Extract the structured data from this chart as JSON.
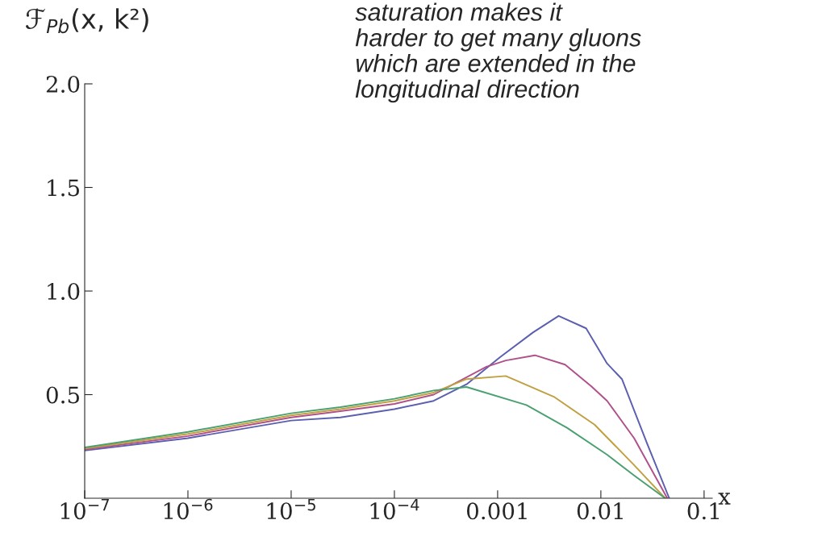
{
  "chart_data": {
    "type": "line",
    "ylabel": "ℱ$_{Pb}$(x, k²)",
    "xlabel": "x",
    "annotations": [
      "saturation makes it\nharder to get many gluons\nwhich are extended in the\nlongitudinal direction"
    ],
    "log": "x",
    "xlim": [
      1e-07,
      0.12
    ],
    "ylim": [
      0,
      2.0
    ],
    "xticks": [
      {
        "value": 1e-07,
        "label": "10$^{−7}$"
      },
      {
        "value": 1e-06,
        "label": "10$^{−6}$"
      },
      {
        "value": 1e-05,
        "label": "10$^{−5}$"
      },
      {
        "value": 0.0001,
        "label": "10$^{−4}$"
      },
      0.001,
      0.01,
      0.1
    ],
    "yticks": [
      0.5,
      {
        "value": 1,
        "label": "1.0"
      },
      1.5,
      {
        "value": 2,
        "label": "2.0"
      }
    ],
    "grid": false,
    "legend": false,
    "series": [
      {
        "color": "#5a5fb0",
        "x": [
          1e-07,
          1e-06,
          1e-05,
          3e-05,
          0.0001,
          0.00024,
          0.0005,
          0.00105,
          0.0022,
          0.0039,
          0.0072,
          0.0115,
          0.016,
          0.028,
          0.046
        ],
        "values": [
          0.23,
          0.29,
          0.375,
          0.39,
          0.43,
          0.47,
          0.55,
          0.68,
          0.8,
          0.88,
          0.82,
          0.65,
          0.575,
          0.265,
          0
        ]
      },
      {
        "color": "#b0508a",
        "x": [
          1e-07,
          1e-06,
          1e-05,
          3e-05,
          0.0001,
          0.00024,
          0.00078,
          0.0012,
          0.0023,
          0.0045,
          0.0081,
          0.0115,
          0.021,
          0.044
        ],
        "values": [
          0.235,
          0.3,
          0.39,
          0.42,
          0.455,
          0.5,
          0.635,
          0.665,
          0.69,
          0.645,
          0.54,
          0.47,
          0.29,
          0
        ]
      },
      {
        "color": "#c0a040",
        "x": [
          1e-07,
          1e-06,
          1e-05,
          3e-05,
          0.0001,
          0.00024,
          0.0005,
          0.0012,
          0.0035,
          0.0087,
          0.021,
          0.042
        ],
        "values": [
          0.24,
          0.31,
          0.4,
          0.43,
          0.47,
          0.51,
          0.575,
          0.59,
          0.49,
          0.355,
          0.16,
          0
        ]
      },
      {
        "color": "#4aa070",
        "x": [
          1e-07,
          1e-06,
          1e-05,
          3e-05,
          0.0001,
          0.00024,
          0.0005,
          0.0019,
          0.0047,
          0.0115,
          0.021,
          0.042
        ],
        "values": [
          0.245,
          0.32,
          0.41,
          0.44,
          0.48,
          0.52,
          0.537,
          0.45,
          0.34,
          0.21,
          0.11,
          0
        ]
      }
    ]
  }
}
